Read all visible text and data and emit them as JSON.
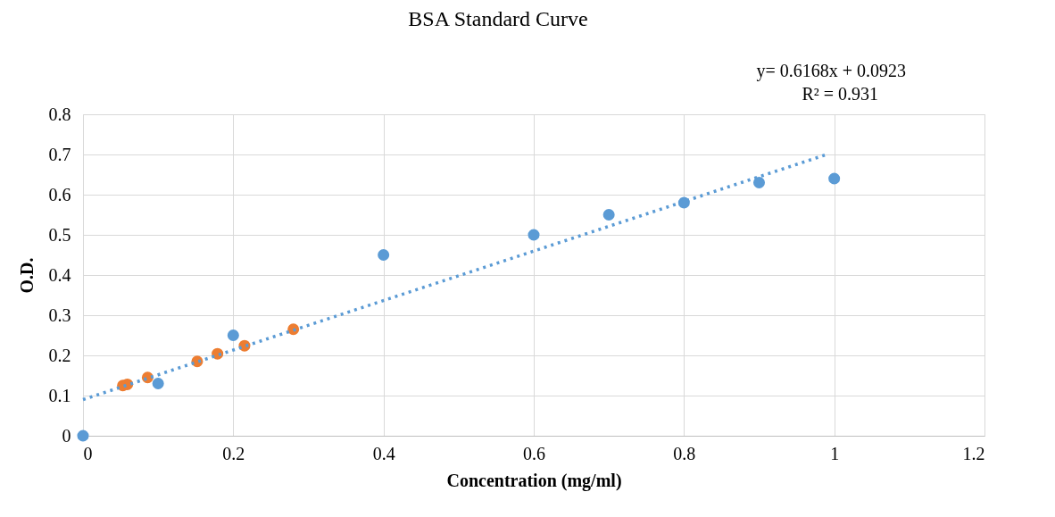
{
  "chart_data": {
    "type": "scatter",
    "title": "BSA Standard Curve",
    "xlabel": "Concentration (mg/ml)",
    "ylabel": "O.D.",
    "annotations": [
      "y= 0.6168x + 0.0923",
      "R² = 0.931"
    ],
    "xlim": [
      0,
      1.2
    ],
    "xticks": [
      0,
      0.2,
      0.4,
      0.6,
      0.8,
      1,
      1.2
    ],
    "ylim": [
      0,
      0.8
    ],
    "yticks": [
      0,
      0.1,
      0.2,
      0.3,
      0.4,
      0.5,
      0.6,
      0.7,
      0.8
    ],
    "grid": true,
    "marker": "circle",
    "series": [
      {
        "color": "#5b9bd5",
        "x": [
          0,
          0.1,
          0.2,
          0.4,
          0.6,
          0.7,
          0.8,
          0.9,
          1
        ],
        "values": [
          0,
          0.13,
          0.25,
          0.45,
          0.5,
          0.55,
          0.58,
          0.63,
          0.64
        ]
      },
      {
        "color": "#ed7d31",
        "x": [
          0.053,
          0.059,
          0.086,
          0.152,
          0.179,
          0.215,
          0.28
        ],
        "values": [
          0.125,
          0.128,
          0.145,
          0.185,
          0.204,
          0.224,
          0.265
        ]
      },
      {
        "type": "line",
        "color": "#5b9bd5",
        "line_style": "dotted",
        "marker": "none",
        "x": [
          0,
          0.99
        ],
        "values": [
          0.09,
          0.7
        ]
      }
    ]
  }
}
